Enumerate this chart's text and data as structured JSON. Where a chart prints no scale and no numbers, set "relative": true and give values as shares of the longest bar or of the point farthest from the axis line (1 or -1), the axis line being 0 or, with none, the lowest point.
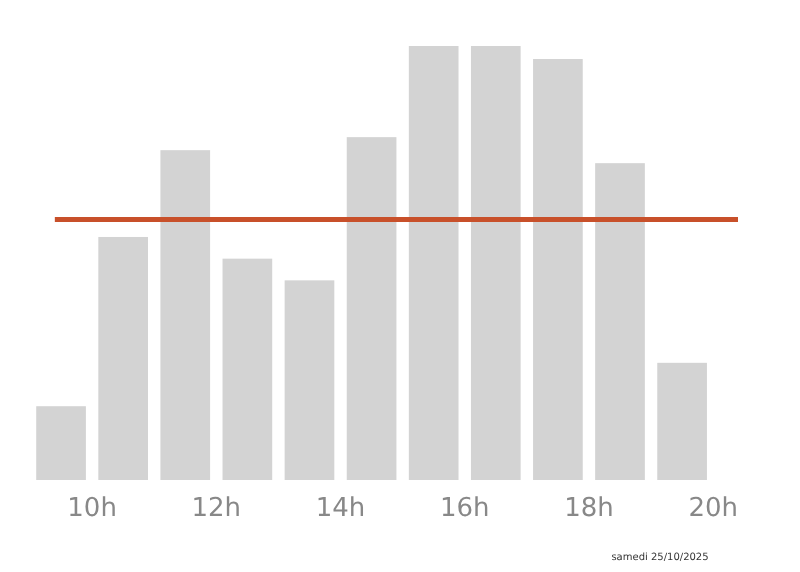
{
  "chart_data": {
    "type": "bar",
    "relative": true,
    "x": [
      9.5,
      10.5,
      11.5,
      12.5,
      13.5,
      14.5,
      15.5,
      16.5,
      17.5,
      18.5,
      19.5
    ],
    "values": [
      0.17,
      0.56,
      0.76,
      0.51,
      0.46,
      0.79,
      1,
      1,
      0.97,
      0.73,
      0.27
    ],
    "color": "#d3d3d3",
    "xlim": [
      9,
      20.4
    ],
    "xticks": [
      {
        "value": 10,
        "label": "10h"
      },
      {
        "value": 12,
        "label": "12h"
      },
      {
        "value": 14,
        "label": "14h"
      },
      {
        "value": 16,
        "label": "16h"
      },
      {
        "value": 18,
        "label": "18h"
      },
      {
        "value": 20,
        "label": "20h"
      }
    ],
    "ref_lines": [
      {
        "axis": "y",
        "value": 0.6,
        "color": "#c8502a"
      }
    ],
    "annotations": [
      "samedi 25/10/2025"
    ],
    "grid": false
  }
}
